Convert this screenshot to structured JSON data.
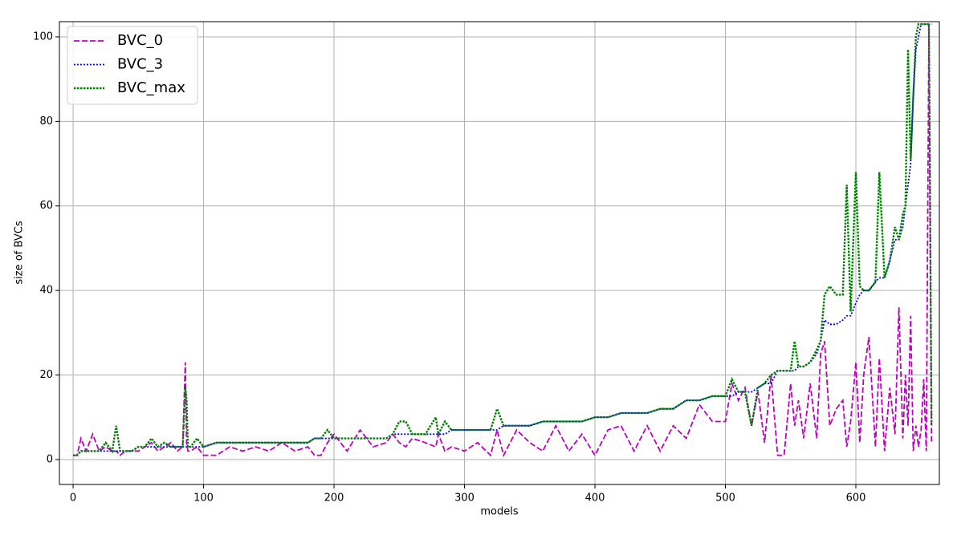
{
  "chart_data": {
    "type": "line",
    "xlabel": "models",
    "ylabel": "size of BVCs",
    "x": [
      0,
      3,
      6,
      10,
      15,
      20,
      25,
      30,
      33,
      36,
      40,
      45,
      50,
      55,
      60,
      65,
      70,
      75,
      80,
      84,
      86,
      87,
      88,
      90,
      95,
      100,
      110,
      120,
      130,
      140,
      150,
      160,
      170,
      180,
      185,
      190,
      195,
      200,
      210,
      220,
      230,
      240,
      245,
      250,
      255,
      260,
      270,
      278,
      280,
      285,
      290,
      300,
      310,
      320,
      325,
      330,
      340,
      350,
      360,
      370,
      380,
      390,
      400,
      410,
      420,
      430,
      440,
      450,
      460,
      470,
      480,
      490,
      500,
      505,
      510,
      515,
      520,
      525,
      530,
      535,
      540,
      545,
      550,
      553,
      556,
      560,
      565,
      570,
      573,
      576,
      580,
      585,
      590,
      593,
      596,
      600,
      603,
      606,
      610,
      615,
      618,
      622,
      626,
      630,
      633,
      636,
      638,
      640,
      642,
      644,
      646,
      648,
      650,
      652,
      654,
      656,
      658
    ],
    "series": [
      {
        "name": "BVC_0",
        "color": "#bf00bf",
        "linestyle": "dashed",
        "values": [
          1,
          1,
          5,
          2,
          6,
          2,
          3,
          2,
          2,
          1,
          2,
          2,
          2,
          3,
          4,
          2,
          3,
          4,
          2,
          3,
          23,
          4,
          2,
          2,
          3,
          1,
          1,
          3,
          2,
          3,
          2,
          4,
          2,
          3,
          1,
          1,
          4,
          6,
          2,
          7,
          3,
          4,
          6,
          4,
          3,
          5,
          4,
          3,
          6,
          2,
          3,
          2,
          4,
          1,
          7,
          1,
          7,
          4,
          2,
          8,
          2,
          6,
          1,
          7,
          8,
          2,
          8,
          2,
          8,
          5,
          13,
          9,
          9,
          18,
          14,
          17,
          8,
          16,
          4,
          20,
          1,
          1,
          18,
          8,
          14,
          5,
          18,
          5,
          25,
          28,
          8,
          12,
          14,
          3,
          9,
          23,
          4,
          20,
          29,
          3,
          24,
          2,
          17,
          6,
          36,
          5,
          20,
          8,
          34,
          2,
          8,
          3,
          7,
          19,
          2,
          103,
          4
        ]
      },
      {
        "name": "BVC_3",
        "color": "#0000ff",
        "linestyle": "dotted",
        "values": [
          1,
          1,
          2,
          2,
          2,
          2,
          2,
          2,
          2,
          2,
          2,
          2,
          3,
          3,
          3,
          3,
          3,
          3,
          3,
          3,
          3,
          3,
          3,
          3,
          3,
          3,
          4,
          4,
          4,
          4,
          4,
          4,
          4,
          4,
          5,
          5,
          5,
          5,
          5,
          5,
          5,
          5,
          6,
          6,
          6,
          6,
          6,
          6,
          6,
          6,
          7,
          7,
          7,
          7,
          7,
          8,
          8,
          8,
          9,
          9,
          9,
          9,
          10,
          10,
          11,
          11,
          11,
          12,
          12,
          14,
          14,
          15,
          15,
          15,
          16,
          16,
          16,
          17,
          18,
          18,
          21,
          21,
          21,
          21,
          22,
          22,
          23,
          25,
          28,
          33,
          32,
          32,
          33,
          34,
          34,
          37,
          39,
          40,
          40,
          42,
          43,
          43,
          47,
          52,
          52,
          55,
          60,
          65,
          70,
          86,
          97,
          100,
          103,
          103,
          103,
          103,
          103
        ]
      },
      {
        "name": "BVC_max",
        "color": "#008000",
        "linestyle": "dotted-bold",
        "values": [
          1,
          1,
          2,
          2,
          2,
          2,
          4,
          2,
          8,
          2,
          2,
          2,
          3,
          3,
          5,
          3,
          4,
          3,
          3,
          3,
          17,
          14,
          3,
          3,
          5,
          3,
          4,
          4,
          4,
          4,
          4,
          4,
          4,
          4,
          5,
          5,
          7,
          5,
          5,
          5,
          5,
          5,
          6,
          9,
          9,
          6,
          6,
          10,
          6,
          9,
          7,
          7,
          7,
          7,
          12,
          8,
          8,
          8,
          9,
          9,
          9,
          9,
          10,
          10,
          11,
          11,
          11,
          12,
          12,
          14,
          14,
          15,
          15,
          19,
          16,
          16,
          8,
          17,
          18,
          20,
          21,
          21,
          21,
          28,
          22,
          22,
          23,
          26,
          28,
          39,
          41,
          39,
          39,
          65,
          35,
          68,
          41,
          40,
          40,
          42,
          68,
          43,
          47,
          55,
          52,
          58,
          60,
          97,
          71,
          86,
          100,
          103,
          103,
          103,
          103,
          103,
          8
        ]
      }
    ],
    "xlim": [
      -10.5,
      664
    ],
    "ylim": [
      -5.9,
      103.6
    ],
    "xticks": [
      0,
      100,
      200,
      300,
      400,
      500,
      600
    ],
    "yticks": [
      0,
      20,
      40,
      60,
      80,
      100
    ],
    "grid": true,
    "legend": "upper left"
  }
}
